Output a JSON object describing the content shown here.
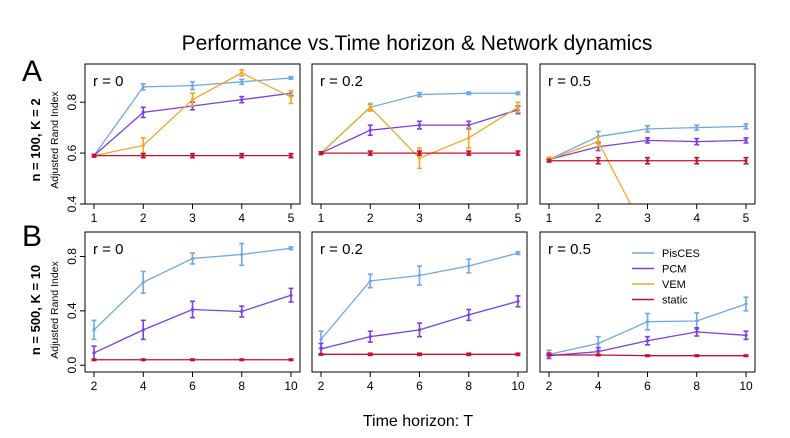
{
  "figure": {
    "title": "Performance vs.Time horizon & Network dynamics",
    "xlabel": "Time horizon:  T",
    "ylabel": "Adjusted Rand Index",
    "rows": [
      {
        "letter": "A",
        "label": "n = 100, K = 2"
      },
      {
        "letter": "B",
        "label": "n = 500, K = 10"
      }
    ],
    "colors": {
      "PisCES": "#6fa8e8",
      "PCM": "#7b3fe4",
      "VEM": "#f5a623",
      "static": "#c8102e"
    },
    "legend": [
      "PisCES",
      "PCM",
      "VEM",
      "static"
    ]
  },
  "chart_data": [
    {
      "type": "line",
      "row": "A",
      "panel_label": "r = 0",
      "x": [
        1,
        2,
        3,
        4,
        5
      ],
      "ylim": [
        0.4,
        0.95
      ],
      "yticks": [
        0.4,
        0.6,
        0.8
      ],
      "ytick_labels": [
        "0.4",
        "0.6",
        "0.8"
      ],
      "series": [
        {
          "name": "PisCES",
          "values": [
            0.59,
            0.86,
            0.865,
            0.88,
            0.895
          ],
          "err": [
            0.005,
            0.012,
            0.015,
            0.01,
            0.005
          ]
        },
        {
          "name": "PCM",
          "values": [
            0.59,
            0.76,
            0.785,
            0.81,
            0.835
          ],
          "err": [
            0.005,
            0.02,
            0.015,
            0.012,
            0.01
          ]
        },
        {
          "name": "VEM",
          "values": [
            0.59,
            0.63,
            0.81,
            0.915,
            0.82
          ],
          "err": [
            0.005,
            0.03,
            0.025,
            0.012,
            0.025
          ]
        },
        {
          "name": "static",
          "values": [
            0.59,
            0.59,
            0.59,
            0.59,
            0.59
          ],
          "err": [
            0.005,
            0.008,
            0.008,
            0.008,
            0.008
          ]
        }
      ]
    },
    {
      "type": "line",
      "row": "A",
      "panel_label": "r = 0.2",
      "x": [
        1,
        2,
        3,
        4,
        5
      ],
      "ylim": [
        0.4,
        0.95
      ],
      "yticks": [
        0.4,
        0.6,
        0.8
      ],
      "ytick_labels": [
        "0.4",
        "0.6",
        "0.8"
      ],
      "series": [
        {
          "name": "PisCES",
          "values": [
            0.6,
            0.78,
            0.83,
            0.835,
            0.835
          ],
          "err": [
            0.005,
            0.012,
            0.008,
            0.005,
            0.005
          ]
        },
        {
          "name": "PCM",
          "values": [
            0.6,
            0.69,
            0.71,
            0.71,
            0.77
          ],
          "err": [
            0.005,
            0.02,
            0.015,
            0.015,
            0.015
          ]
        },
        {
          "name": "VEM",
          "values": [
            0.6,
            0.78,
            0.58,
            0.66,
            0.78
          ],
          "err": [
            0.005,
            0.015,
            0.04,
            0.04,
            0.02
          ]
        },
        {
          "name": "static",
          "values": [
            0.6,
            0.6,
            0.6,
            0.6,
            0.6
          ],
          "err": [
            0.005,
            0.008,
            0.008,
            0.008,
            0.008
          ]
        }
      ]
    },
    {
      "type": "line",
      "row": "A",
      "panel_label": "r = 0.5",
      "x": [
        1,
        2,
        3,
        4,
        5
      ],
      "ylim": [
        0.4,
        0.95
      ],
      "yticks": [
        0.4,
        0.6,
        0.8
      ],
      "ytick_labels": [
        "0.4",
        "0.6",
        "0.8"
      ],
      "series": [
        {
          "name": "PisCES",
          "values": [
            0.575,
            0.665,
            0.695,
            0.7,
            0.705
          ],
          "err": [
            0.008,
            0.02,
            0.012,
            0.01,
            0.01
          ]
        },
        {
          "name": "PCM",
          "values": [
            0.575,
            0.625,
            0.65,
            0.645,
            0.65
          ],
          "err": [
            0.008,
            0.015,
            0.01,
            0.012,
            0.01
          ]
        },
        {
          "name": "VEM",
          "values": [
            0.575,
            0.645,
            0.27,
            null,
            null
          ],
          "err": [
            0.008,
            0.02,
            0,
            0,
            0
          ]
        },
        {
          "name": "static",
          "values": [
            0.57,
            0.57,
            0.57,
            0.57,
            0.57
          ],
          "err": [
            0.005,
            0.012,
            0.012,
            0.012,
            0.012
          ]
        }
      ]
    },
    {
      "type": "line",
      "row": "B",
      "panel_label": "r = 0",
      "x": [
        2,
        4,
        6,
        8,
        10
      ],
      "ylim": [
        -0.05,
        0.98
      ],
      "yticks": [
        0.0,
        0.4,
        0.8
      ],
      "ytick_labels": [
        "0.0",
        "0.4",
        "0.8"
      ],
      "series": [
        {
          "name": "PisCES",
          "values": [
            0.26,
            0.61,
            0.785,
            0.815,
            0.86
          ],
          "err": [
            0.07,
            0.08,
            0.04,
            0.08,
            0.01
          ]
        },
        {
          "name": "PCM",
          "values": [
            0.09,
            0.26,
            0.41,
            0.395,
            0.515
          ],
          "err": [
            0.05,
            0.07,
            0.06,
            0.04,
            0.05
          ]
        },
        {
          "name": "static",
          "values": [
            0.04,
            0.04,
            0.04,
            0.04,
            0.04
          ],
          "err": [
            0.005,
            0.005,
            0.005,
            0.005,
            0.005
          ]
        }
      ]
    },
    {
      "type": "line",
      "row": "B",
      "panel_label": "r = 0.2",
      "x": [
        2,
        4,
        6,
        8,
        10
      ],
      "ylim": [
        -0.05,
        0.98
      ],
      "yticks": [
        0.0,
        0.4,
        0.8
      ],
      "ytick_labels": [
        "0.0",
        "0.4",
        "0.8"
      ],
      "series": [
        {
          "name": "PisCES",
          "values": [
            0.19,
            0.62,
            0.66,
            0.73,
            0.825
          ],
          "err": [
            0.06,
            0.05,
            0.07,
            0.05,
            0.01
          ]
        },
        {
          "name": "PCM",
          "values": [
            0.12,
            0.21,
            0.26,
            0.37,
            0.47
          ],
          "err": [
            0.04,
            0.04,
            0.05,
            0.04,
            0.04
          ]
        },
        {
          "name": "static",
          "values": [
            0.08,
            0.08,
            0.08,
            0.08,
            0.08
          ],
          "err": [
            0.005,
            0.008,
            0.008,
            0.008,
            0.008
          ]
        }
      ]
    },
    {
      "type": "line",
      "row": "B",
      "panel_label": "r = 0.5",
      "x": [
        2,
        4,
        6,
        8,
        10
      ],
      "ylim": [
        -0.05,
        0.98
      ],
      "yticks": [
        0.0,
        0.4,
        0.8
      ],
      "ytick_labels": [
        "0.0",
        "0.4",
        "0.8"
      ],
      "series": [
        {
          "name": "PisCES",
          "values": [
            0.08,
            0.16,
            0.32,
            0.325,
            0.45
          ],
          "err": [
            0.03,
            0.05,
            0.06,
            0.06,
            0.05
          ]
        },
        {
          "name": "PCM",
          "values": [
            0.07,
            0.1,
            0.18,
            0.245,
            0.22
          ],
          "err": [
            0.02,
            0.03,
            0.03,
            0.03,
            0.03
          ]
        },
        {
          "name": "static",
          "values": [
            0.075,
            0.075,
            0.07,
            0.07,
            0.07
          ],
          "err": [
            0.005,
            0.005,
            0.005,
            0.005,
            0.005
          ]
        }
      ]
    }
  ]
}
